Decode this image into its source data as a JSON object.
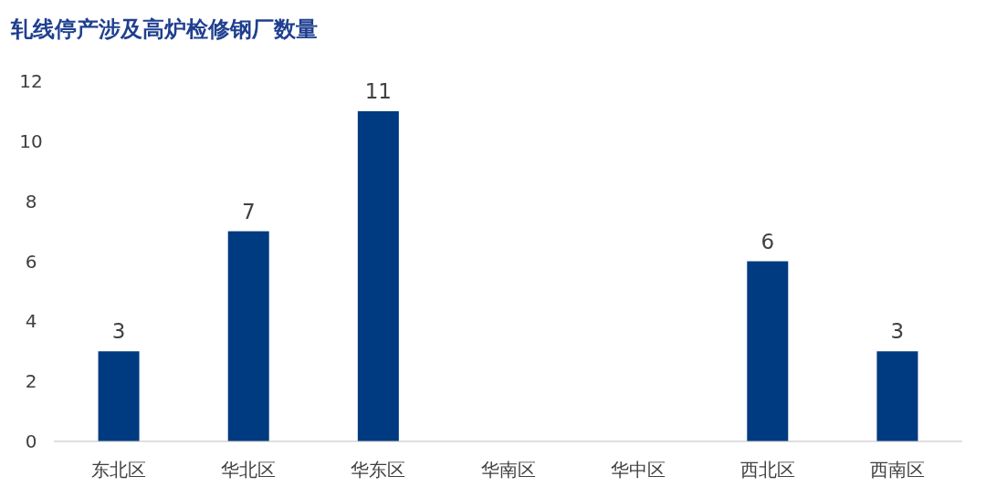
{
  "chart_data": {
    "type": "bar",
    "title": "轧线停产涉及高炉检修钢厂数量",
    "categories": [
      "东北区",
      "华北区",
      "华东区",
      "华南区",
      "华中区",
      "西北区",
      "西南区"
    ],
    "values": [
      3,
      7,
      11,
      0,
      0,
      6,
      3
    ],
    "value_labels": [
      "3",
      "7",
      "11",
      null,
      null,
      "6",
      "3"
    ],
    "color": "#003a80",
    "ylim": [
      0,
      12
    ],
    "yticks": [
      0,
      2,
      4,
      6,
      8,
      10,
      12
    ]
  }
}
